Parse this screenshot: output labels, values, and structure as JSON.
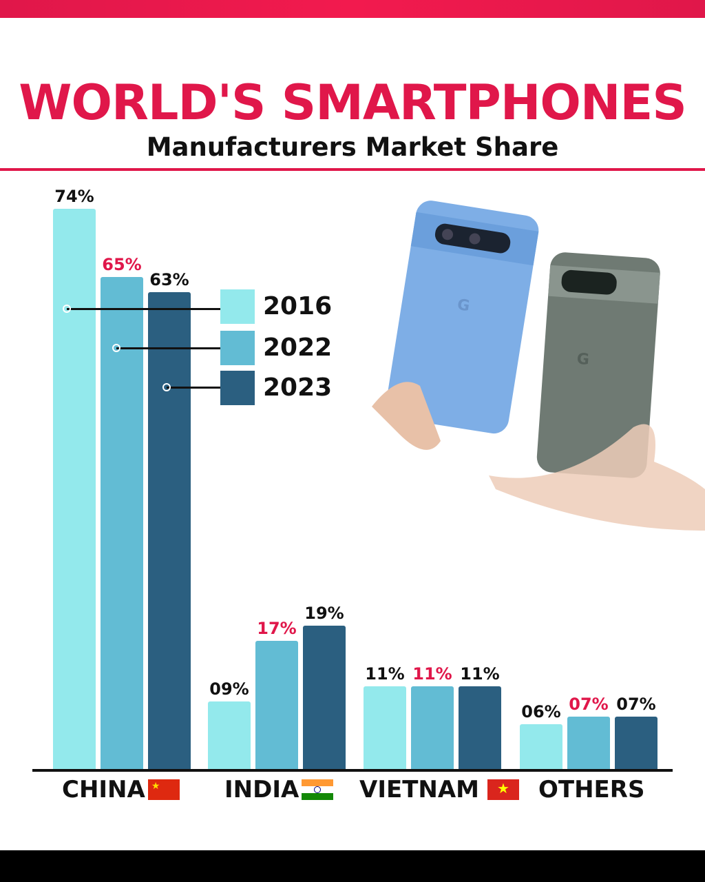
{
  "header": {
    "title": "WORLD'S SMARTPHONES",
    "subtitle": "Manufacturers Market Share"
  },
  "colors": {
    "accent": "#e0174a",
    "2016": "#93e9ec",
    "2022": "#62bcd4",
    "2023": "#2b5f80"
  },
  "chart_data": {
    "type": "bar",
    "title": "WORLD'S SMARTPHONES - Manufacturers Market Share",
    "categories": [
      "CHINA",
      "INDIA",
      "VIETNAM",
      "OTHERS"
    ],
    "series": [
      {
        "name": "2016",
        "values": [
          74,
          9,
          11,
          6
        ],
        "labels": [
          "74%",
          "09%",
          "11%",
          "06%"
        ]
      },
      {
        "name": "2022",
        "values": [
          65,
          17,
          11,
          7
        ],
        "labels": [
          "65%",
          "17%",
          "11%",
          "07%"
        ]
      },
      {
        "name": "2023",
        "values": [
          63,
          19,
          11,
          7
        ],
        "labels": [
          "63%",
          "19%",
          "11%",
          "07%"
        ]
      }
    ],
    "ylim": [
      0,
      76
    ],
    "legend": "center"
  }
}
